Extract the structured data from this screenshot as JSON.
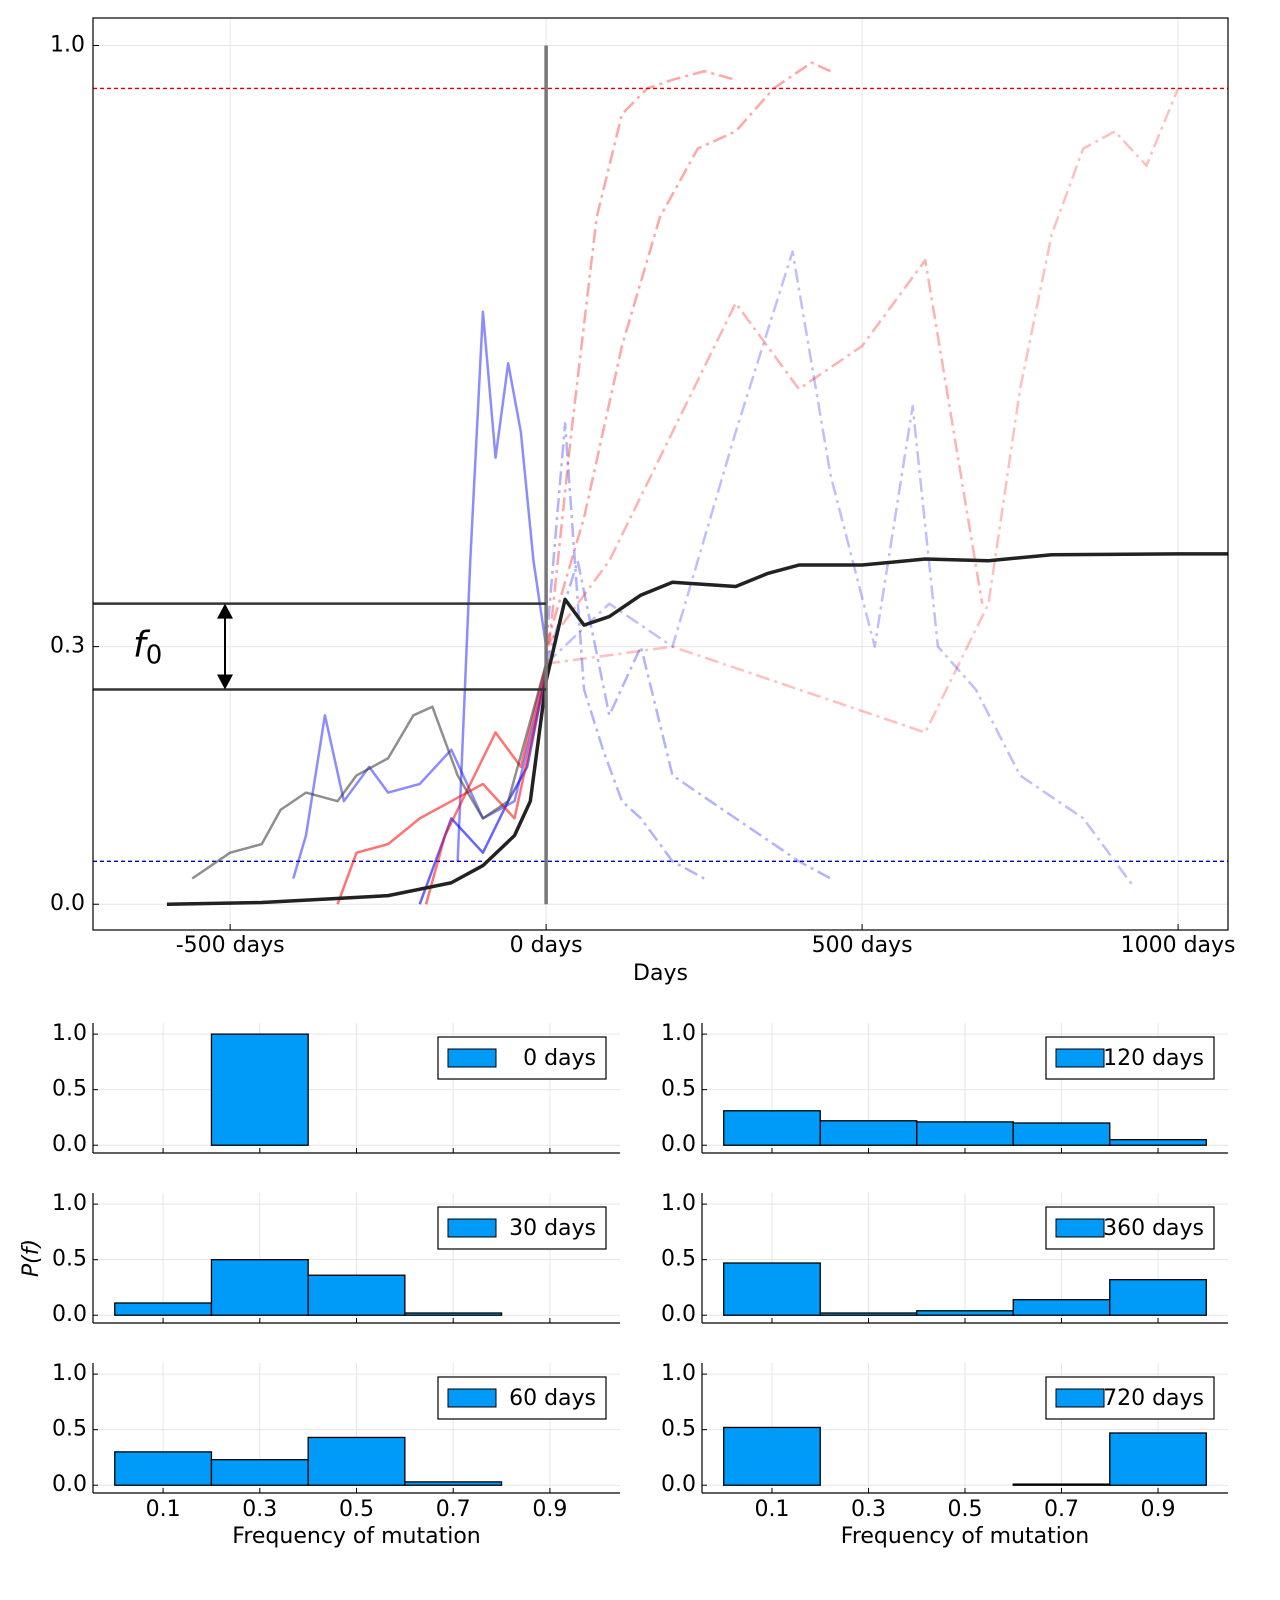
{
  "chart_data": [
    {
      "type": "line",
      "xlabel": "Days",
      "xlim": [
        -717,
        1079
      ],
      "ylim": [
        -0.03,
        1.032
      ],
      "xticks": [
        {
          "value": -500,
          "label": "-500 days"
        },
        {
          "value": 0,
          "label": "0 days"
        },
        {
          "value": 500,
          "label": "500 days"
        },
        {
          "value": 1000,
          "label": "1000 days"
        }
      ],
      "yticks": [
        {
          "value": 0,
          "label": "0.0"
        },
        0.3,
        {
          "value": 1,
          "label": "1.0"
        }
      ],
      "grid": true,
      "hlines": [
        {
          "value": 0.95,
          "color": "#dd0000",
          "style": "dashed"
        },
        {
          "value": 0.05,
          "color": "#0000bb",
          "style": "dashed"
        }
      ],
      "vline": {
        "x": 0,
        "y": [
          0,
          1
        ],
        "color": "#777777"
      },
      "f0_lines": [
        0.35,
        0.25
      ],
      "annotation": {
        "text": "f",
        "sub": "0"
      },
      "series": [
        {
          "color": "#0000ff",
          "opacity": 0.45,
          "style": "solid",
          "x": [
            -140,
            -120,
            -100,
            -80,
            -60,
            -40,
            -20,
            0
          ],
          "y": [
            0.05,
            0.4,
            0.69,
            0.52,
            0.63,
            0.55,
            0.4,
            0.3
          ]
        },
        {
          "color": "#0000ff",
          "opacity": 0.45,
          "style": "solid",
          "x": [
            -400,
            -380,
            -350,
            -320,
            -280,
            -250,
            -200,
            -150,
            -100,
            -50,
            0
          ],
          "y": [
            0.03,
            0.08,
            0.22,
            0.12,
            0.16,
            0.13,
            0.14,
            0.18,
            0.1,
            0.12,
            0.27
          ]
        },
        {
          "color": "#0000ff",
          "opacity": 0.6,
          "style": "solid",
          "x": [
            -200,
            -150,
            -100,
            -60,
            -30,
            0
          ],
          "y": [
            0.0,
            0.1,
            0.06,
            0.12,
            0.16,
            0.27
          ]
        },
        {
          "color": "#0000ff",
          "opacity": 0.3,
          "style": "dashdot",
          "x": [
            0,
            30,
            60,
            90,
            120,
            150,
            200,
            250
          ],
          "y": [
            0.3,
            0.56,
            0.25,
            0.18,
            0.12,
            0.1,
            0.05,
            0.03
          ]
        },
        {
          "color": "#0000ff",
          "opacity": 0.3,
          "style": "dashdot",
          "x": [
            0,
            50,
            100,
            150,
            200,
            300,
            400,
            450
          ],
          "y": [
            0.28,
            0.4,
            0.22,
            0.3,
            0.15,
            0.1,
            0.05,
            0.03
          ]
        },
        {
          "color": "#0000ff",
          "opacity": 0.25,
          "style": "dashdot",
          "x": [
            0,
            100,
            200,
            300,
            390,
            450,
            520,
            580,
            620,
            680,
            750,
            850,
            930
          ],
          "y": [
            0.28,
            0.35,
            0.3,
            0.55,
            0.76,
            0.5,
            0.3,
            0.58,
            0.3,
            0.25,
            0.15,
            0.1,
            0.02
          ]
        },
        {
          "color": "#ff0000",
          "opacity": 0.55,
          "style": "solid",
          "x": [
            -330,
            -300,
            -250,
            -200,
            -150,
            -100,
            -50,
            0
          ],
          "y": [
            0.0,
            0.06,
            0.07,
            0.1,
            0.12,
            0.14,
            0.1,
            0.27
          ]
        },
        {
          "color": "#ff0000",
          "opacity": 0.55,
          "style": "solid",
          "x": [
            -190,
            -160,
            -120,
            -80,
            -40,
            0
          ],
          "y": [
            0.0,
            0.08,
            0.14,
            0.2,
            0.16,
            0.28
          ]
        },
        {
          "color": "#ff0000",
          "opacity": 0.35,
          "style": "dashdot",
          "x": [
            0,
            40,
            80,
            120,
            160,
            200,
            250,
            300
          ],
          "y": [
            0.27,
            0.55,
            0.8,
            0.92,
            0.95,
            0.96,
            0.97,
            0.96
          ]
        },
        {
          "color": "#ff0000",
          "opacity": 0.35,
          "style": "dashdot",
          "x": [
            0,
            60,
            120,
            180,
            240,
            300,
            360,
            420,
            450
          ],
          "y": [
            0.3,
            0.45,
            0.65,
            0.8,
            0.88,
            0.9,
            0.95,
            0.98,
            0.97
          ]
        },
        {
          "color": "#ff0000",
          "opacity": 0.3,
          "style": "dashdot",
          "x": [
            0,
            100,
            200,
            300,
            400,
            500,
            600,
            690
          ],
          "y": [
            0.3,
            0.4,
            0.55,
            0.7,
            0.6,
            0.65,
            0.75,
            0.35
          ]
        },
        {
          "color": "#ff0000",
          "opacity": 0.25,
          "style": "dashdot",
          "x": [
            0,
            200,
            400,
            600,
            700,
            750,
            800,
            850,
            900,
            950,
            1000
          ],
          "y": [
            0.28,
            0.3,
            0.25,
            0.2,
            0.35,
            0.6,
            0.78,
            0.88,
            0.9,
            0.86,
            0.95
          ]
        },
        {
          "color": "#333333",
          "opacity": 0.55,
          "style": "solid",
          "x": [
            -560,
            -500,
            -450,
            -420,
            -380,
            -330,
            -300,
            -250,
            -210,
            -180,
            -140,
            -100,
            -60,
            -30,
            0
          ],
          "y": [
            0.03,
            0.06,
            0.07,
            0.11,
            0.13,
            0.12,
            0.15,
            0.17,
            0.22,
            0.23,
            0.15,
            0.1,
            0.12,
            0.2,
            0.28
          ]
        },
        {
          "color": "#222222",
          "opacity": 1,
          "style": "solid",
          "width": 3.5,
          "x": [
            -600,
            -450,
            -350,
            -250,
            -150,
            -100,
            -50,
            -25,
            0,
            30,
            60,
            100,
            150,
            200,
            300,
            350,
            400,
            500,
            600,
            700,
            800,
            1000,
            1079
          ],
          "y": [
            0,
            0.002,
            0.006,
            0.01,
            0.025,
            0.045,
            0.08,
            0.12,
            0.26,
            0.355,
            0.325,
            0.335,
            0.36,
            0.375,
            0.37,
            0.385,
            0.395,
            0.395,
            0.402,
            0.4,
            0.407,
            0.408,
            0.408
          ]
        }
      ]
    },
    {
      "type": "histogram",
      "bins": [
        0,
        0.2,
        0.4,
        0.6,
        0.8,
        1.0
      ],
      "series": [
        {
          "name": "0 days",
          "color": "#009af9",
          "values": [
            0,
            1,
            0,
            0,
            0
          ]
        }
      ],
      "xlim": [
        -0.045,
        1.045
      ],
      "ylim": [
        -0.07,
        1.1
      ],
      "xticks": [
        0.1,
        0.3,
        0.5,
        0.7,
        0.9
      ],
      "xticklabels": false,
      "yticks": [
        {
          "value": 0,
          "label": "0.0"
        },
        0.5,
        {
          "value": 1,
          "label": "1.0"
        }
      ],
      "grid": true,
      "legend": "upper right"
    },
    {
      "type": "histogram",
      "bins": [
        0,
        0.2,
        0.4,
        0.6,
        0.8,
        1.0
      ],
      "series": [
        {
          "name": "120 days",
          "color": "#009af9",
          "values": [
            0.31,
            0.22,
            0.21,
            0.2,
            0.05
          ]
        }
      ],
      "xlim": [
        -0.045,
        1.045
      ],
      "ylim": [
        -0.07,
        1.1
      ],
      "xticks": [
        0.1,
        0.3,
        0.5,
        0.7,
        0.9
      ],
      "xticklabels": false,
      "yticks": [
        {
          "value": 0,
          "label": "0.0"
        },
        0.5,
        {
          "value": 1,
          "label": "1.0"
        }
      ],
      "grid": true,
      "legend": "upper right"
    },
    {
      "type": "histogram",
      "bins": [
        0,
        0.2,
        0.4,
        0.6,
        0.8,
        1.0
      ],
      "ylabel": "P(f)",
      "series": [
        {
          "name": "30 days",
          "color": "#009af9",
          "values": [
            0.11,
            0.5,
            0.36,
            0.02,
            0.0
          ]
        }
      ],
      "xlim": [
        -0.045,
        1.045
      ],
      "ylim": [
        -0.07,
        1.1
      ],
      "xticks": [
        0.1,
        0.3,
        0.5,
        0.7,
        0.9
      ],
      "xticklabels": false,
      "yticks": [
        {
          "value": 0,
          "label": "0.0"
        },
        0.5,
        {
          "value": 1,
          "label": "1.0"
        }
      ],
      "grid": true,
      "legend": "upper right"
    },
    {
      "type": "histogram",
      "bins": [
        0,
        0.2,
        0.4,
        0.6,
        0.8,
        1.0
      ],
      "series": [
        {
          "name": "360 days",
          "color": "#009af9",
          "values": [
            0.47,
            0.02,
            0.04,
            0.14,
            0.32
          ]
        }
      ],
      "xlim": [
        -0.045,
        1.045
      ],
      "ylim": [
        -0.07,
        1.1
      ],
      "xticks": [
        0.1,
        0.3,
        0.5,
        0.7,
        0.9
      ],
      "xticklabels": false,
      "yticks": [
        {
          "value": 0,
          "label": "0.0"
        },
        0.5,
        {
          "value": 1,
          "label": "1.0"
        }
      ],
      "grid": true,
      "legend": "upper right"
    },
    {
      "type": "histogram",
      "bins": [
        0,
        0.2,
        0.4,
        0.6,
        0.8,
        1.0
      ],
      "xlabel": "Frequency of mutation",
      "series": [
        {
          "name": "60 days",
          "color": "#009af9",
          "values": [
            0.3,
            0.23,
            0.43,
            0.03,
            0.0
          ]
        }
      ],
      "xlim": [
        -0.045,
        1.045
      ],
      "ylim": [
        -0.07,
        1.1
      ],
      "xticks": [
        0.1,
        0.3,
        0.5,
        0.7,
        0.9
      ],
      "xticklabels": true,
      "yticks": [
        {
          "value": 0,
          "label": "0.0"
        },
        0.5,
        {
          "value": 1,
          "label": "1.0"
        }
      ],
      "grid": true,
      "legend": "upper right"
    },
    {
      "type": "histogram",
      "bins": [
        0,
        0.2,
        0.4,
        0.6,
        0.8,
        1.0
      ],
      "xlabel": "Frequency of mutation",
      "series": [
        {
          "name": "720 days",
          "color": "#009af9",
          "values": [
            0.52,
            0.0,
            0.0,
            0.01,
            0.47
          ]
        }
      ],
      "xlim": [
        -0.045,
        1.045
      ],
      "ylim": [
        -0.07,
        1.1
      ],
      "xticks": [
        0.1,
        0.3,
        0.5,
        0.7,
        0.9
      ],
      "xticklabels": true,
      "yticks": [
        {
          "value": 0,
          "label": "0.0"
        },
        0.5,
        {
          "value": 1,
          "label": "1.0"
        }
      ],
      "grid": true,
      "legend": "upper right"
    }
  ]
}
